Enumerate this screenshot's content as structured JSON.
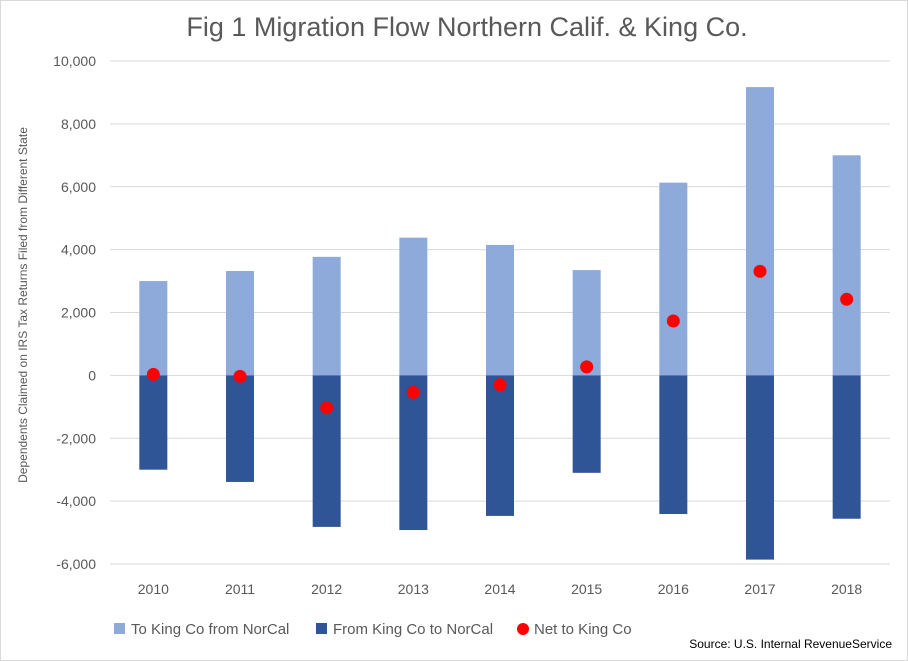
{
  "chart_data": {
    "type": "bar",
    "title": "Fig 1 Migration Flow Northern Calif. & King Co.",
    "ylabel": "Dependents Claimed on IRS Tax Returns Filed from Different State",
    "xlabel": "",
    "categories": [
      "2010",
      "2011",
      "2012",
      "2013",
      "2014",
      "2015",
      "2016",
      "2017",
      "2018"
    ],
    "ylim": [
      -6000,
      10000
    ],
    "yticks": [
      10000,
      8000,
      6000,
      4000,
      2000,
      0,
      -2000,
      -4000,
      -6000
    ],
    "ytick_labels": [
      "10,000",
      "8,000",
      "6,000",
      "4,000",
      "2,000",
      "0",
      "-2,000",
      "-4,000",
      "-6,000"
    ],
    "grid": true,
    "legend_position": "bottom",
    "series": [
      {
        "name": "To King Co from NorCal",
        "kind": "bar",
        "color": "#8eaadb",
        "values": [
          3000,
          3320,
          3770,
          4380,
          4150,
          3350,
          6130,
          9170,
          7000
        ]
      },
      {
        "name": "From King Co to NorCal",
        "kind": "bar",
        "color": "#2f5597",
        "values": [
          -3000,
          -3390,
          -4820,
          -4920,
          -4470,
          -3100,
          -4410,
          -5860,
          -4560
        ]
      },
      {
        "name": "Net to King Co",
        "kind": "marker",
        "color": "#ff0000",
        "values": [
          30,
          -30,
          -1030,
          -540,
          -300,
          270,
          1730,
          3310,
          2420
        ]
      }
    ],
    "source": "Source: U.S. Internal RevenueService"
  }
}
